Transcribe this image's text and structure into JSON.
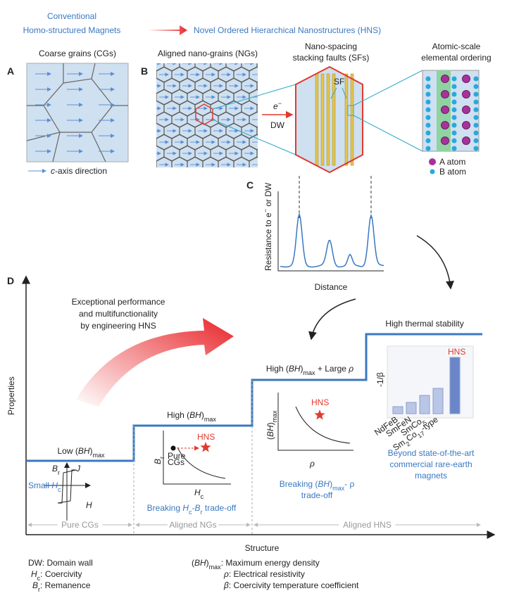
{
  "header": {
    "left": [
      "Conventional",
      "Homo-structured Magnets"
    ],
    "right": "Novel Ordered Hierarchical Nanostructures (HNS)"
  },
  "panel_a": {
    "label": "A",
    "title": "Coarse grains (CGs)",
    "legend": [
      "c",
      "-axis direction"
    ]
  },
  "panel_b": {
    "label": "B",
    "title": "Aligned nano-grains (NGs)",
    "arrow_top": [
      "e",
      "−"
    ],
    "arrow_bottom": "DW"
  },
  "stacking_faults": {
    "title": [
      "Nano-spacing",
      "stacking faults (SFs)"
    ],
    "marker": "SF"
  },
  "ordering": {
    "title": [
      "Atomic-scale",
      "elemental ordering"
    ],
    "legend": [
      "A atom",
      "B atom"
    ]
  },
  "panel_c": {
    "label": "C",
    "y_label": [
      "Resistance to e",
      "−",
      " or DW"
    ],
    "x_label": "Distance"
  },
  "panel_d": {
    "label": "D",
    "y_label": "Properties",
    "x_label": "Structure",
    "slogan": [
      "Exceptional performance",
      "and multifunctionality",
      "by engineering HNS"
    ],
    "steps": {
      "low": [
        "Low (",
        "BH",
        ")",
        "max"
      ],
      "high": [
        "High (",
        "BH",
        ")",
        "max"
      ],
      "high_rho": [
        "High (",
        "BH",
        ")",
        "max",
        " + Large ",
        "ρ"
      ],
      "thermal": "High thermal stability"
    },
    "hysteresis": {
      "br": [
        "B",
        "r"
      ],
      "j": "J",
      "hc": [
        "Small ",
        "H",
        "c"
      ],
      "h": "H"
    },
    "hc_br": {
      "y": [
        "B",
        "r"
      ],
      "x": [
        "H",
        "c"
      ],
      "hns": "HNS",
      "pure": [
        "Pure",
        "CGs"
      ],
      "caption": [
        "Breaking ",
        "H",
        "c",
        "-",
        "B",
        "r",
        " trade-off"
      ]
    },
    "bh_rho": {
      "y": [
        "(",
        "BH",
        ")",
        "max"
      ],
      "x": "ρ",
      "hns": "HNS",
      "caption_1": [
        "Breaking (",
        "BH",
        ")",
        "max",
        "- ρ"
      ],
      "caption_2": "trade-off"
    },
    "beta": {
      "y": "-1/β",
      "hns": "HNS",
      "bars": [
        "NdFeB",
        "SmFeN",
        [
          "SmCo",
          "5"
        ],
        [
          "Sm",
          "2",
          "Co",
          "17",
          "-type"
        ]
      ],
      "caption": [
        "Beyond state-of-the-art",
        "commercial  rare-earth",
        "magnets"
      ]
    },
    "regions": [
      "Pure CGs",
      "Aligned NGs",
      "Aligned HNS"
    ]
  },
  "glossary": {
    "dw": [
      "DW",
      ": Domain wall"
    ],
    "hc": [
      "H",
      "c",
      ": Coercivity"
    ],
    "br": [
      "B",
      "r",
      ": Remanence"
    ],
    "bh": [
      "(",
      "BH",
      ")",
      "max",
      ": Maximum energy density"
    ],
    "rho": [
      "ρ",
      ": Electrical resistivity"
    ],
    "beta": [
      "β",
      ": Coercivity temperature coefficient"
    ]
  }
}
